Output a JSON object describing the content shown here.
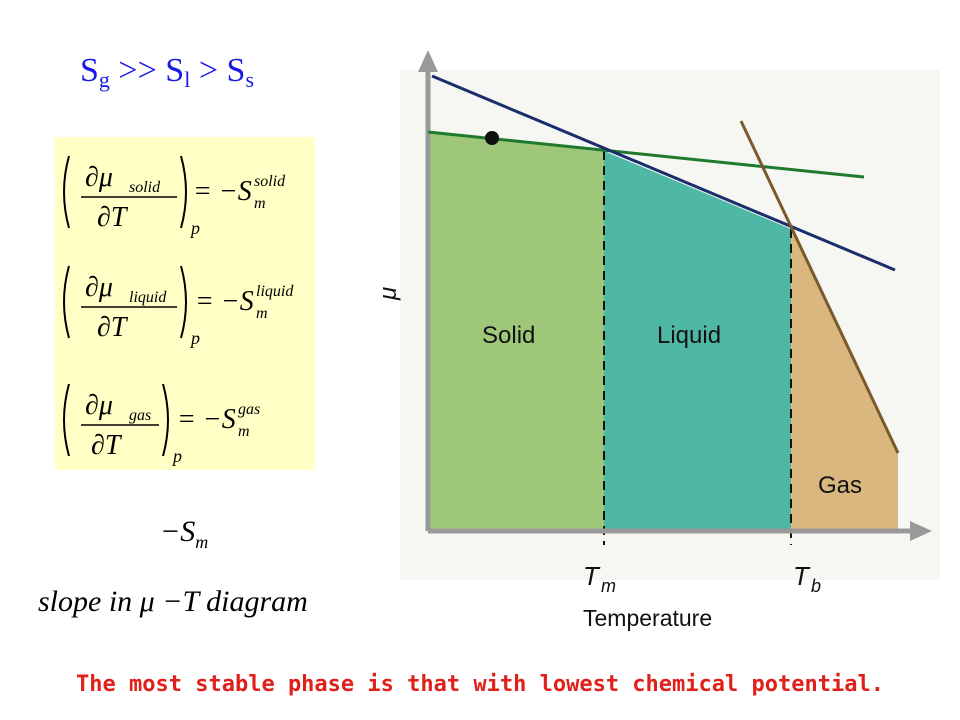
{
  "entropy_relation": {
    "sg": "S",
    "sg_sub": "g",
    "op1": ">>",
    "sl": "S",
    "sl_sub": "l",
    "op2": ">",
    "ss": "S",
    "ss_sub": "s"
  },
  "equations": [
    {
      "phase": "solid",
      "lhs_num": "∂μ",
      "lhs_den": "∂T",
      "sub": "p",
      "rhs": "= −S",
      "rhs_sub": "m",
      "rhs_sup": "solid"
    },
    {
      "phase": "liquid",
      "lhs_num": "∂μ",
      "lhs_den": "∂T",
      "sub": "p",
      "rhs": "= −S",
      "rhs_sub": "m",
      "rhs_sup": "liquid"
    },
    {
      "phase": "gas",
      "lhs_num": "∂μ",
      "lhs_den": "∂T",
      "sub": "p",
      "rhs": "= −S",
      "rhs_sub": "m",
      "rhs_sup": "gas"
    }
  ],
  "minus_sm": {
    "text": "−S",
    "sub": "m"
  },
  "slope_caption": "slope in μ −T diagram",
  "diagram": {
    "y_axis_label": "μ",
    "x_axis_label": "Temperature",
    "tm_label": "T",
    "tm_sub": "m",
    "tb_label": "T",
    "tb_sub": "b",
    "regions": {
      "solid": "Solid",
      "liquid": "Liquid",
      "gas": "Gas"
    },
    "colors": {
      "solid": "#9fc77a",
      "liquid": "#4fb8a4",
      "gas": "#d9b77f",
      "solid_line": "#1f7a2e",
      "liquid_line": "#1a2e6b",
      "gas_line": "#7a5a2a",
      "axis": "#999999"
    }
  },
  "footer_text": "The most stable phase is that with lowest chemical potential."
}
